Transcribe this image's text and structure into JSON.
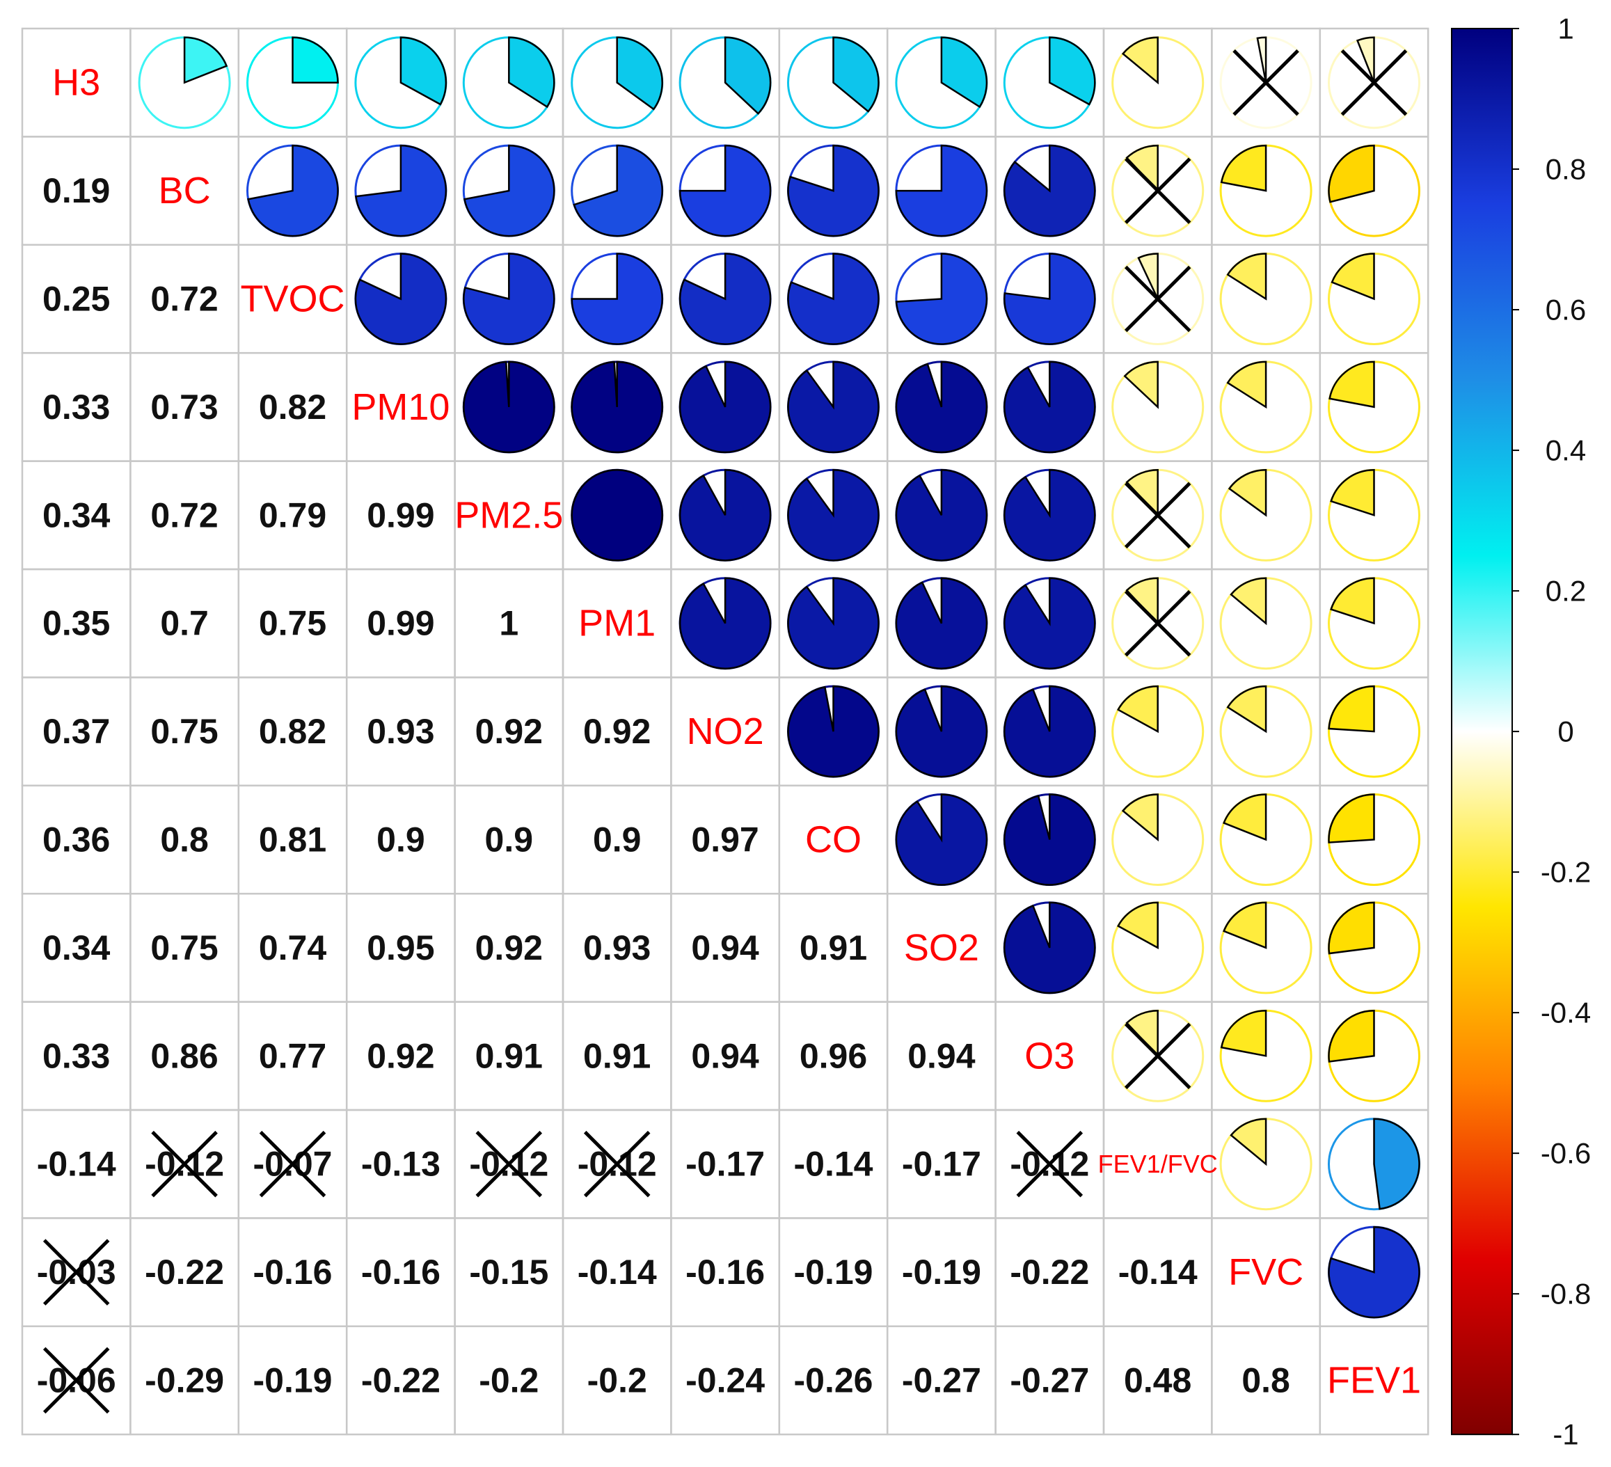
{
  "chart_data": {
    "type": "corrplot",
    "variables": [
      "H3",
      "BC",
      "TVOC",
      "PM10",
      "PM2.5",
      "PM1",
      "NO2",
      "CO",
      "SO2",
      "O3",
      "FEV1/FVC",
      "FVC",
      "FEV1"
    ],
    "values": [
      [],
      [
        0.19
      ],
      [
        0.25,
        0.72
      ],
      [
        0.33,
        0.73,
        0.82
      ],
      [
        0.34,
        0.72,
        0.79,
        0.99
      ],
      [
        0.35,
        0.7,
        0.75,
        0.99,
        1
      ],
      [
        0.37,
        0.75,
        0.82,
        0.93,
        0.92,
        0.92
      ],
      [
        0.36,
        0.8,
        0.81,
        0.9,
        0.9,
        0.9,
        0.97
      ],
      [
        0.34,
        0.75,
        0.74,
        0.95,
        0.92,
        0.93,
        0.94,
        0.91
      ],
      [
        0.33,
        0.86,
        0.77,
        0.92,
        0.91,
        0.91,
        0.94,
        0.96,
        0.94
      ],
      [
        -0.14,
        -0.12,
        -0.07,
        -0.13,
        -0.12,
        -0.12,
        -0.17,
        -0.14,
        -0.17,
        -0.12
      ],
      [
        -0.03,
        -0.22,
        -0.16,
        -0.16,
        -0.15,
        -0.14,
        -0.16,
        -0.19,
        -0.19,
        -0.22,
        -0.14
      ],
      [
        -0.06,
        -0.29,
        -0.19,
        -0.22,
        -0.2,
        -0.2,
        -0.24,
        -0.26,
        -0.27,
        -0.27,
        0.48,
        0.8
      ]
    ],
    "crossed": [
      [],
      [
        false
      ],
      [
        false,
        false
      ],
      [
        false,
        false,
        false
      ],
      [
        false,
        false,
        false,
        false
      ],
      [
        false,
        false,
        false,
        false,
        false
      ],
      [
        false,
        false,
        false,
        false,
        false,
        false
      ],
      [
        false,
        false,
        false,
        false,
        false,
        false,
        false
      ],
      [
        false,
        false,
        false,
        false,
        false,
        false,
        false,
        false
      ],
      [
        false,
        false,
        false,
        false,
        false,
        false,
        false,
        false,
        false
      ],
      [
        false,
        true,
        true,
        false,
        true,
        true,
        false,
        false,
        false,
        true
      ],
      [
        true,
        false,
        false,
        false,
        false,
        false,
        false,
        false,
        false,
        false,
        false
      ],
      [
        true,
        false,
        false,
        false,
        false,
        false,
        false,
        false,
        false,
        false,
        false,
        false
      ]
    ],
    "colormap": [
      "#800000",
      "#e00000",
      "#ff8000",
      "#ffe600",
      "#ffffff",
      "#00f0f0",
      "#1e8ee6",
      "#1a3ee0",
      "#00007f"
    ],
    "clim": [
      -1,
      1
    ],
    "cticks": [
      1,
      0.8,
      0.6,
      0.4,
      0.2,
      0,
      -0.2,
      -0.4,
      -0.6,
      -0.8,
      -1
    ],
    "label_color": "#ff0000",
    "cross_color": "#000000"
  }
}
